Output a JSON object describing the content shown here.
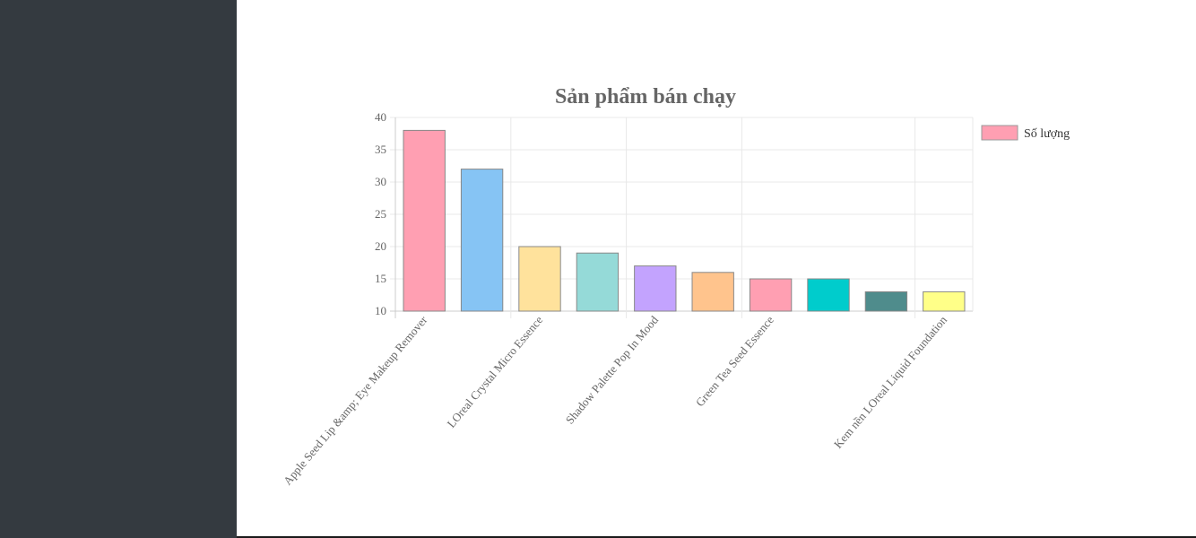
{
  "sidebar": {},
  "chart_data": {
    "type": "bar",
    "title": "Sản phẩm bán chạy",
    "xlabel": "",
    "ylabel": "",
    "ylim": [
      10,
      40
    ],
    "yticks": [
      10,
      15,
      20,
      25,
      30,
      35,
      40
    ],
    "grid": true,
    "legend_position": "right",
    "categories": [
      "Apple Seed Lip &amp; Eye Makeup Remover",
      "",
      "LOreal Crystal Micro Essence",
      "",
      "Shadow Palette Pop In Mood",
      "",
      "Green Tea Seed Essence",
      "",
      "",
      "Kem nền LOreal Liquid Foundation"
    ],
    "series": [
      {
        "name": "Số lượng",
        "values": [
          38,
          32,
          20,
          19,
          17,
          16,
          15,
          15,
          13,
          13
        ]
      }
    ],
    "colors": [
      "#ff9fb2",
      "#86c4f4",
      "#ffe29c",
      "#95dad8",
      "#c3a3fe",
      "#ffc48d",
      "#ff9fb2",
      "#00cccc",
      "#4f8c8c",
      "#ffff88"
    ],
    "legend_color": "#ff9fb2"
  }
}
